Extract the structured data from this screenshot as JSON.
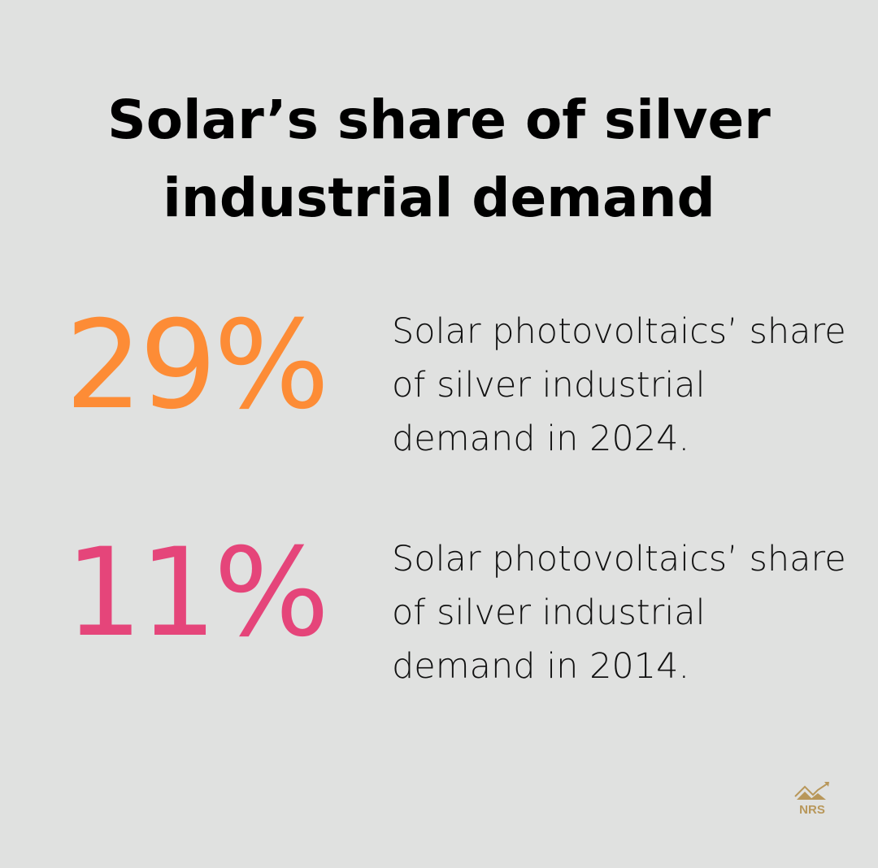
{
  "title": "Solar’s share of silver industrial demand",
  "stats": [
    {
      "value": "29%",
      "description": "Solar photovoltaics’ share of silver industrial demand in 2024.",
      "color": "#fd8c36"
    },
    {
      "value": "11%",
      "description": "Solar photovoltaics’ share of silver industrial demand in 2014.",
      "color": "#e5457a"
    }
  ],
  "logo": {
    "text": "NRS",
    "color": "#b8975a"
  }
}
